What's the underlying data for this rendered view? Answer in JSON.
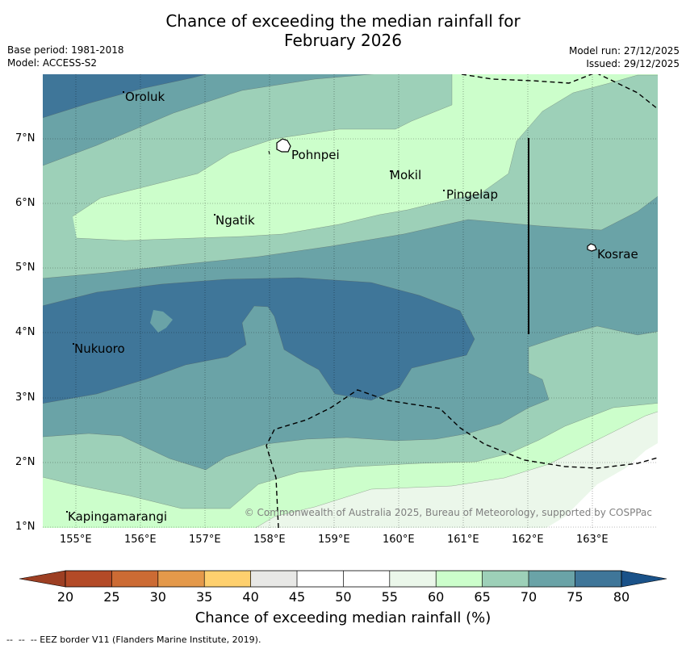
{
  "header": {
    "title_line1": "Chance of exceeding the median rainfall for",
    "title_line2": "February 2026",
    "base_period": "Base period: 1981-2018",
    "model": "Model: ACCESS-S2",
    "model_run": "Model run: 27/12/2025",
    "issued": "Issued: 29/12/2025"
  },
  "map": {
    "longitude_ticks": [
      "155°E",
      "156°E",
      "157°E",
      "158°E",
      "159°E",
      "160°E",
      "161°E",
      "162°E",
      "163°E"
    ],
    "latitude_ticks": [
      "7°N",
      "6°N",
      "5°N",
      "4°N",
      "3°N",
      "2°N",
      "1°N"
    ],
    "places": {
      "oroluk": "Oroluk",
      "pohnpei": "Pohnpei",
      "mokil": "Mokil",
      "pingelap": "Pingelap",
      "ngatik": "Ngatik",
      "kosrae": "Kosrae",
      "nukuoro": "Nukuoro",
      "kapingamarangi": "Kapingamarangi"
    },
    "copyright": "© Commonwealth of Australia 2025, Bureau of Meteorology, supported by COSPPac"
  },
  "colorbar": {
    "ticks": [
      "20",
      "25",
      "30",
      "35",
      "40",
      "45",
      "50",
      "55",
      "60",
      "65",
      "70",
      "75",
      "80"
    ],
    "colors": [
      "#b34a27",
      "#cc6b34",
      "#e4994a",
      "#fed06e",
      "#e8e8e6",
      "#ffffff",
      "#ffffff",
      "#ebf7ea",
      "#ccfecb",
      "#9dd0b8",
      "#6aa3a7",
      "#3f7699"
    ],
    "extend_low_color": "#9d3f23",
    "extend_high_color": "#1a5289",
    "label": "Chance of exceeding median rainfall (%)"
  },
  "footer": {
    "eez_legend": "--  --  -- EEZ border V11 (Flanders Marine Institute, 2019)."
  }
}
